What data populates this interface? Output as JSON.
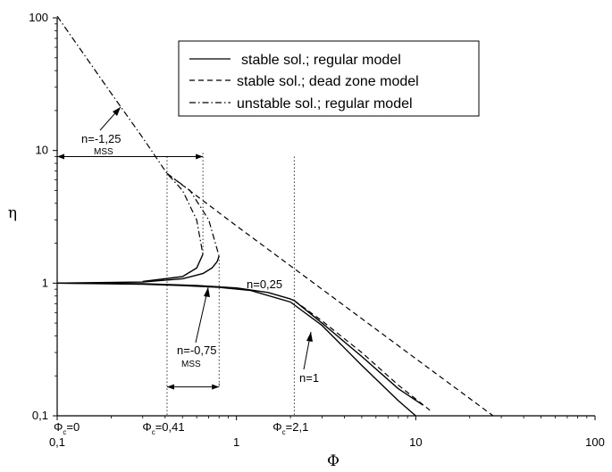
{
  "chart_data": {
    "type": "line",
    "xlabel": "Φ",
    "ylabel": "η",
    "xscale": "log",
    "yscale": "log",
    "xlim": [
      0.1,
      100
    ],
    "ylim": [
      0.1,
      100
    ],
    "x_ticks": [
      "0,1",
      "1",
      "10",
      "100"
    ],
    "y_ticks": [
      "0,1",
      "1",
      "10",
      "100"
    ],
    "grid": false,
    "legend_position": "top-right",
    "legend": [
      {
        "label": "stable sol.; regular model",
        "style": "solid"
      },
      {
        "label": "stable sol.; dead zone model",
        "style": "dashed"
      },
      {
        "label": "unstable sol.; regular model",
        "style": "dashdot"
      }
    ],
    "series": [
      {
        "style": "solid",
        "group": "n=0,25",
        "x": [
          0.1,
          0.3,
          0.6,
          1.0,
          1.5,
          2.0,
          2.1,
          3,
          5,
          8,
          11
        ],
        "y": [
          1.0,
          0.99,
          0.96,
          0.92,
          0.85,
          0.76,
          0.74,
          0.5,
          0.28,
          0.16,
          0.12
        ]
      },
      {
        "style": "solid",
        "group": "n=1",
        "x": [
          0.1,
          0.3,
          0.5,
          0.8,
          1.2,
          2,
          3,
          5,
          8,
          10
        ],
        "y": [
          1.0,
          0.98,
          0.96,
          0.93,
          0.88,
          0.72,
          0.48,
          0.24,
          0.13,
          0.1
        ]
      },
      {
        "style": "dashed",
        "group": "n=0,25",
        "x": [
          2.1,
          3,
          5,
          8,
          12
        ],
        "y": [
          0.74,
          0.52,
          0.3,
          0.17,
          0.11
        ]
      },
      {
        "style": "dashed",
        "group": "n=-0,75",
        "x": [
          0.41,
          0.6,
          1,
          3,
          10,
          27
        ],
        "y": [
          6.7,
          4.55,
          2.7,
          0.9,
          0.27,
          0.1
        ]
      },
      {
        "style": "solid",
        "group": "n=-0,75",
        "x": [
          0.1,
          0.3,
          0.5,
          0.65,
          0.73,
          0.78,
          0.8
        ],
        "y": [
          1.0,
          1.02,
          1.08,
          1.18,
          1.3,
          1.45,
          1.6
        ]
      },
      {
        "style": "solid",
        "group": "n=-1,25",
        "x": [
          0.3,
          0.5,
          0.6,
          0.65
        ],
        "y": [
          1.03,
          1.12,
          1.3,
          1.65
        ]
      },
      {
        "style": "dashdot",
        "group": "n=-1,25",
        "x": [
          0.1,
          0.2,
          0.3,
          0.41,
          0.5,
          0.6,
          0.65
        ],
        "y": [
          103,
          27,
          12.5,
          6.7,
          5.0,
          3.0,
          1.65
        ]
      },
      {
        "style": "dashdot",
        "group": "n=-0,75",
        "x": [
          0.41,
          0.55,
          0.7,
          0.8
        ],
        "y": [
          6.7,
          5.0,
          3.0,
          1.6
        ]
      }
    ],
    "vertical_markers": [
      {
        "x": 0.1,
        "label_main": "Φ",
        "label_sub": "c",
        "label_rest": "=0"
      },
      {
        "x": 0.41,
        "label_main": "Φ",
        "label_sub": "c",
        "label_rest": "=0,41"
      },
      {
        "x": 2.1,
        "label_main": "Φ",
        "label_sub": "c",
        "label_rest": "=2,1"
      }
    ],
    "annotations": {
      "n_m125": "n=-1,25",
      "mss_top": "MSS",
      "n_025": "n=0,25",
      "n_m075": "n=-0,75",
      "mss_bottom": "MSS",
      "n_1": "n=1"
    },
    "mss_ranges": [
      {
        "x": [
          0.1,
          0.65
        ],
        "y": 9.0
      },
      {
        "x": [
          0.41,
          0.8
        ],
        "y": 0.165
      }
    ]
  }
}
